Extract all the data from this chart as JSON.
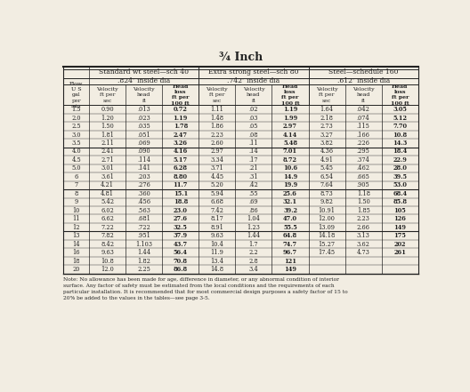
{
  "title": "¾ Inch",
  "section1_title": "Standard wt steel—sch 40",
  "section1_dia": ".824″ inside dia",
  "section2_title": "Extra strong steel—sch 80",
  "section2_dia": ".742″ inside dia",
  "section3_title": "Steel—schedule 160",
  "section3_dia": ".612″ inside dia",
  "rows": [
    [
      "1.5",
      "0.90",
      ".013",
      "0.72",
      "1.11",
      ".02",
      "1.19",
      "1.64",
      ".042",
      "3.05"
    ],
    [
      "2.0",
      "1.20",
      ".023",
      "1.19",
      "1.48",
      ".03",
      "1.99",
      "2.18",
      ".074",
      "5.12"
    ],
    [
      "2.5",
      "1.50",
      ".035",
      "1.78",
      "1.86",
      ".05",
      "2.97",
      "2.73",
      ".115",
      "7.70"
    ],
    [
      "3.0",
      "1.81",
      ".051",
      "2.47",
      "2.23",
      ".08",
      "4.14",
      "3.27",
      ".166",
      "10.8"
    ],
    [
      "3.5",
      "2.11",
      ".069",
      "3.26",
      "2.60",
      ".11",
      "5.48",
      "3.82",
      ".226",
      "14.3"
    ],
    [
      "4.0",
      "2.41",
      ".090",
      "4.16",
      "2.97",
      ".14",
      "7.01",
      "4.36",
      ".295",
      "18.4"
    ],
    [
      "4.5",
      "2.71",
      ".114",
      "5.17",
      "3.34",
      ".17",
      "8.72",
      "4.91",
      ".374",
      "22.9"
    ],
    [
      "5.0",
      "3.01",
      ".141",
      "6.28",
      "3.71",
      ".21",
      "10.6",
      "5.45",
      ".462",
      "28.0"
    ],
    [
      "6",
      "3.61",
      ".203",
      "8.80",
      "4.45",
      ".31",
      "14.9",
      "6.54",
      ".665",
      "39.5"
    ],
    [
      "7",
      "4.21",
      ".276",
      "11.7",
      "5.20",
      ".42",
      "19.9",
      "7.64",
      ".905",
      "53.0"
    ],
    [
      "8",
      "4.81",
      ".360",
      "15.1",
      "5.94",
      ".55",
      "25.6",
      "8.73",
      "1.18",
      "68.4"
    ],
    [
      "9",
      "5.42",
      ".456",
      "18.8",
      "6.68",
      ".69",
      "32.1",
      "9.82",
      "1.50",
      "85.8"
    ],
    [
      "10",
      "6.02",
      ".563",
      "23.0",
      "7.42",
      ".86",
      "39.2",
      "10.91",
      "1.85",
      "105"
    ],
    [
      "11",
      "6.62",
      ".681",
      "27.6",
      "8.17",
      "1.04",
      "47.0",
      "12.00",
      "2.23",
      "126"
    ],
    [
      "12",
      "7.22",
      ".722",
      "32.5",
      "8.91",
      "1.23",
      "55.5",
      "13.09",
      "2.66",
      "149"
    ],
    [
      "13",
      "7.82",
      ".951",
      "37.9",
      "9.63",
      "1.44",
      "64.8",
      "14.18",
      "3.13",
      "175"
    ],
    [
      "14",
      "8.42",
      "1.103",
      "43.7",
      "10.4",
      "1.7",
      "74.7",
      "15.27",
      "3.62",
      "202"
    ],
    [
      "16",
      "9.63",
      "1.44",
      "56.4",
      "11.9",
      "2.2",
      "96.7",
      "17.45",
      "4.73",
      "261"
    ],
    [
      "18",
      "10.8",
      "1.82",
      "70.8",
      "13.4",
      "2.8",
      "121",
      "",
      "",
      ""
    ],
    [
      "20",
      "12.0",
      "2.25",
      "86.8",
      "14.8",
      "3.4",
      "149",
      "",
      "",
      ""
    ]
  ],
  "group_separators_after": [
    4,
    9,
    14
  ],
  "bold_col_indices": [
    3,
    6,
    9
  ],
  "note_text": "Note: No allowance has been made for age, difference in diameter, or any abnormal condition of interior\nsurface. Any factor of safety must be estimated from the local conditions and the requirements of each\nparticular installation. It is recommended that for most commercial design purposes a safety factor of 15 to\n20% be added to the values in the tables—see page 3-5.",
  "bg_color": "#f2ede2",
  "line_color": "#222222"
}
